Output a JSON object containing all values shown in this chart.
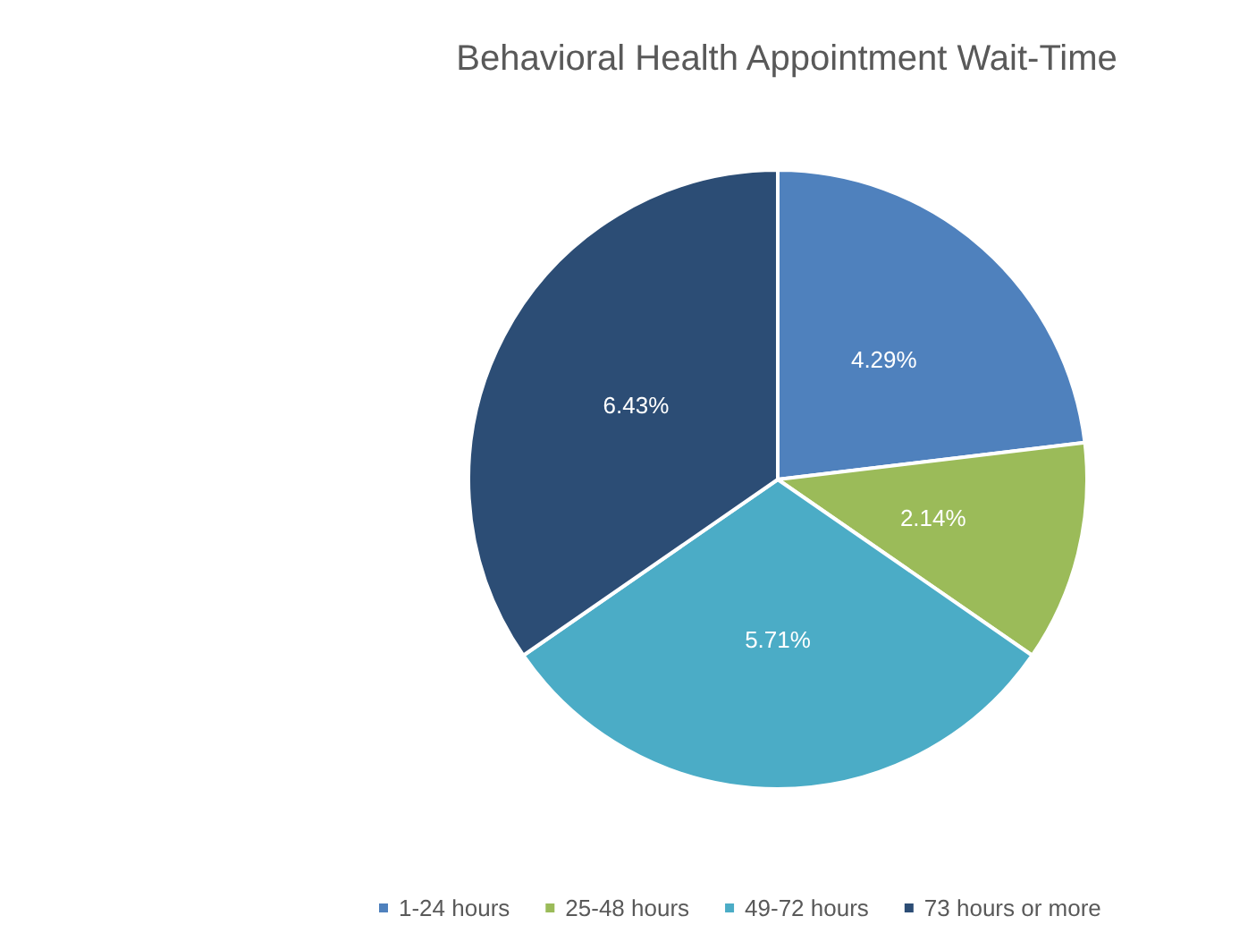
{
  "chart_data": {
    "type": "pie",
    "title": "Behavioral Health Appointment Wait-Time",
    "categories": [
      "1-24 hours",
      "25-48 hours",
      "49-72 hours",
      "73 hours or more"
    ],
    "values": [
      4.29,
      2.14,
      5.71,
      6.43
    ],
    "colors": [
      "#4f81bd",
      "#9bbb59",
      "#4bacc6",
      "#2c4d75"
    ],
    "value_labels": [
      "4.29%",
      "2.14%",
      "5.71%",
      "6.43%"
    ],
    "legend": "bottom"
  }
}
